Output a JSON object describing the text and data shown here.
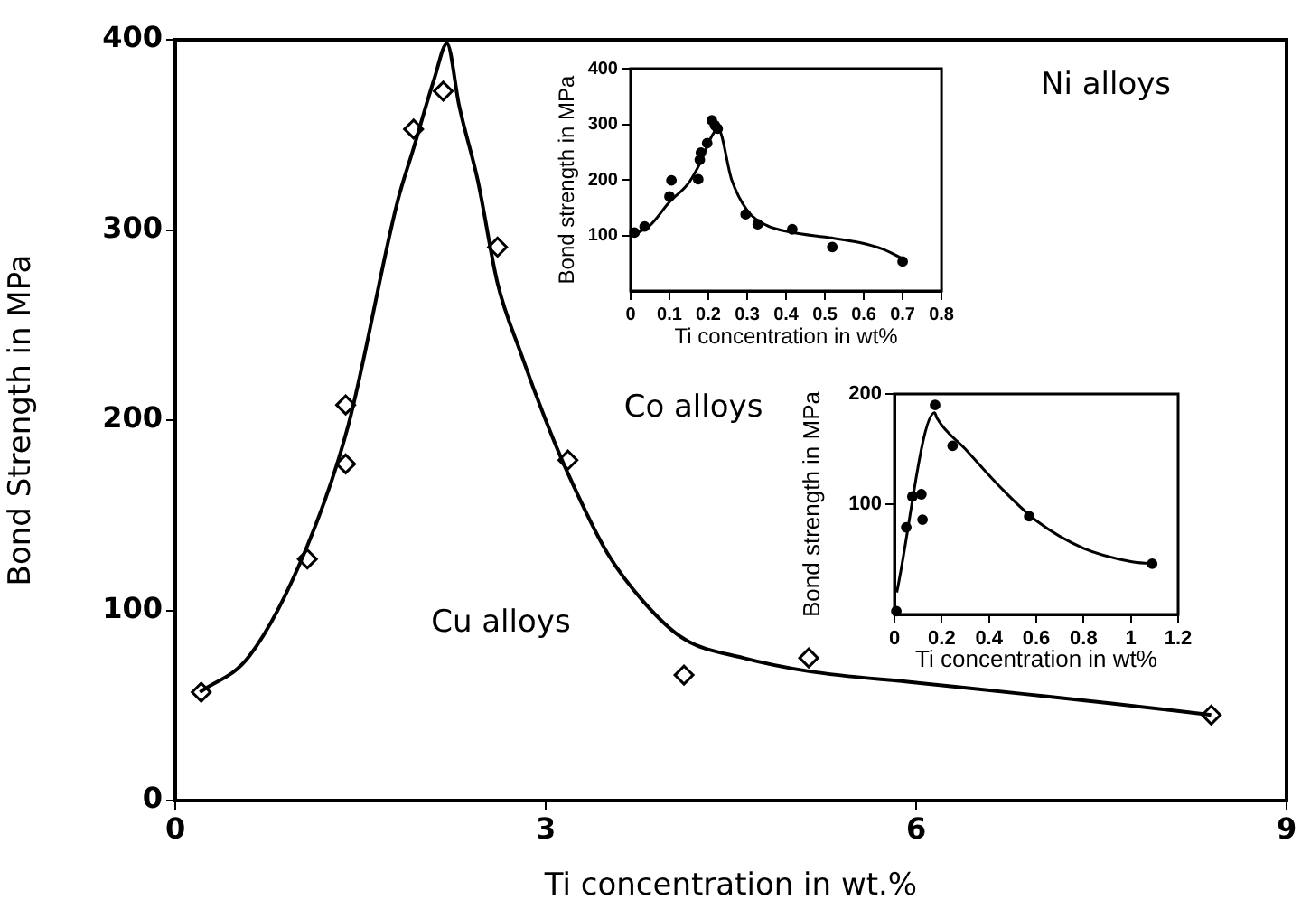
{
  "chart_data": [
    {
      "type": "scatter",
      "xlabel": "Ti concentration in wt.%",
      "ylabel": "Bond Strength in MPa",
      "xlim": [
        0,
        9
      ],
      "xticks": [
        0,
        3,
        6,
        9
      ],
      "ylim": [
        0,
        400
      ],
      "yticks": [
        0,
        100,
        200,
        300,
        400
      ],
      "grid": false,
      "legend": false,
      "annotations": [
        "Cu alloys",
        "Co alloys",
        "Ni alloys"
      ],
      "series": [
        {
          "type": "scatter",
          "marker": "diamond",
          "color": "#000000",
          "x": [
            0.21,
            1.07,
            1.38,
            1.38,
            1.93,
            2.17,
            2.61,
            3.18,
            4.12,
            5.13,
            8.39
          ],
          "values": [
            57,
            127,
            177,
            208,
            353,
            373,
            291,
            179,
            66,
            75,
            45
          ]
        },
        {
          "type": "line",
          "marker": "none",
          "color": "#000000",
          "x": [
            0.2,
            0.6,
            1.07,
            1.4,
            1.8,
            1.93,
            2.1,
            2.2,
            2.3,
            2.45,
            2.61,
            2.8,
            3.0,
            3.18,
            3.5,
            3.8,
            4.12,
            4.6,
            5.13,
            6.0,
            6.88,
            7.6,
            8.39
          ],
          "values": [
            57,
            76,
            134,
            197,
            315,
            343,
            380,
            398,
            365,
            326,
            272,
            235,
            200,
            172,
            130,
            104,
            85,
            75,
            68,
            62,
            56,
            51,
            45
          ]
        }
      ]
    },
    {
      "type": "scatter",
      "xlabel": "Ti concentration in wt%",
      "ylabel": "Bond strength in MPa",
      "xlim": [
        0,
        0.8
      ],
      "xticks": [
        0,
        0.1,
        0.2,
        0.3,
        0.4,
        0.5,
        0.6,
        0.7,
        0.8
      ],
      "ylim": [
        0,
        400
      ],
      "yticks": [
        100,
        200,
        300,
        400
      ],
      "grid": false,
      "legend": false,
      "series": [
        {
          "type": "scatter",
          "marker": "circle",
          "color": "#000000",
          "x": [
            0.01,
            0.036,
            0.1,
            0.105,
            0.174,
            0.178,
            0.181,
            0.197,
            0.209,
            0.217,
            0.224,
            0.296,
            0.327,
            0.416,
            0.519,
            0.7
          ],
          "values": [
            105,
            116,
            170,
            199,
            201,
            236,
            249,
            266,
            307,
            298,
            292,
            138,
            120,
            111,
            79,
            53
          ]
        },
        {
          "type": "line",
          "marker": "none",
          "color": "#000000",
          "x": [
            0.01,
            0.05,
            0.1,
            0.15,
            0.18,
            0.21,
            0.225,
            0.26,
            0.3,
            0.35,
            0.42,
            0.5,
            0.59,
            0.65,
            0.7
          ],
          "values": [
            102,
            118,
            160,
            195,
            232,
            280,
            292,
            200,
            145,
            118,
            105,
            97,
            87,
            75,
            58
          ]
        }
      ]
    },
    {
      "type": "scatter",
      "xlabel": "Ti concentration in wt%",
      "ylabel": "Bond strength in MPa",
      "xlim": [
        0,
        1.2
      ],
      "xticks": [
        0,
        0.2,
        0.4,
        0.6,
        0.8,
        1,
        1.2
      ],
      "ylim": [
        0,
        200
      ],
      "yticks": [
        100,
        200
      ],
      "grid": false,
      "legend": false,
      "series": [
        {
          "type": "scatter",
          "marker": "circle",
          "color": "#000000",
          "x": [
            0.008,
            0.05,
            0.076,
            0.114,
            0.119,
            0.172,
            0.246,
            0.57,
            1.09
          ],
          "values": [
            3,
            79,
            107,
            109,
            86,
            190,
            153,
            89,
            46
          ]
        },
        {
          "type": "line",
          "marker": "none",
          "color": "#000000",
          "x": [
            0.01,
            0.17,
            0.18,
            0.3,
            0.45,
            0.6,
            0.8,
            1.0,
            1.09
          ],
          "values": [
            20,
            183,
            178,
            150,
            115,
            85,
            60,
            48,
            46
          ]
        }
      ]
    }
  ]
}
